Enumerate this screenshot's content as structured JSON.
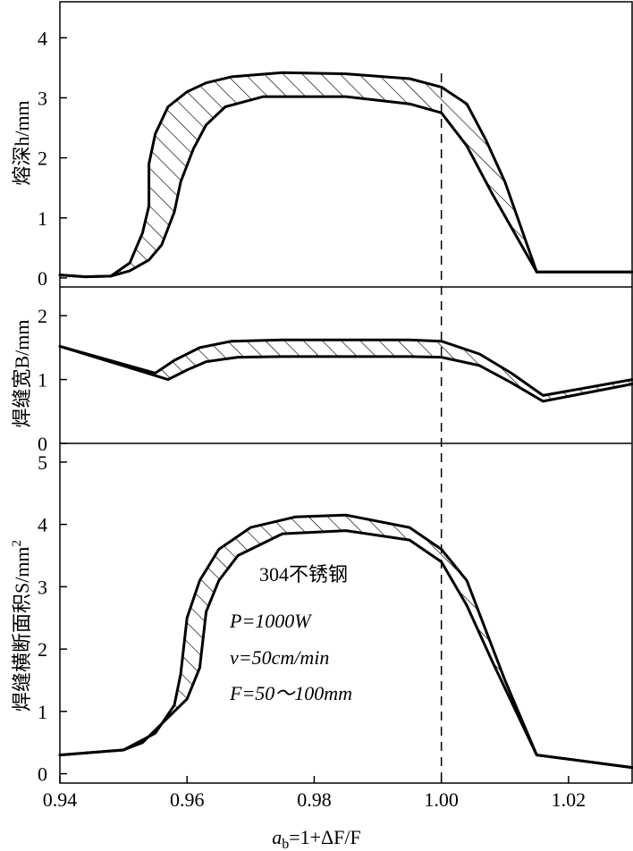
{
  "chart_data": {
    "type": "area",
    "xlabel": "a_b=1+ΔF/F",
    "xlabel_parts": {
      "base": "a",
      "sub": "b",
      "rest": "=1+ΔF/F"
    },
    "xlim": [
      0.94,
      1.03
    ],
    "xticks": [
      0.94,
      0.96,
      0.98,
      1.0,
      1.02
    ],
    "xtick_labels": [
      "0.94",
      "0.96",
      "0.98",
      "1.00",
      "1.02"
    ],
    "reference_line_x": 1.0,
    "annotations": {
      "material": "304不锈钢",
      "power": "P=1000W",
      "speed": "v=50cm/min",
      "focal": "F=50～100mm"
    },
    "panels": [
      {
        "id": "depth",
        "ylabel": "熔深h/mm",
        "ylim": [
          -0.15,
          4.6
        ],
        "yticks": [
          0,
          1,
          2,
          3,
          4
        ],
        "upper": [
          [
            0.94,
            0.05
          ],
          [
            0.944,
            0.02
          ],
          [
            0.948,
            0.03
          ],
          [
            0.951,
            0.25
          ],
          [
            0.953,
            0.75
          ],
          [
            0.954,
            1.2
          ],
          [
            0.954,
            1.9
          ],
          [
            0.955,
            2.4
          ],
          [
            0.957,
            2.85
          ],
          [
            0.96,
            3.1
          ],
          [
            0.963,
            3.25
          ],
          [
            0.967,
            3.35
          ],
          [
            0.975,
            3.42
          ],
          [
            0.985,
            3.4
          ],
          [
            0.995,
            3.32
          ],
          [
            1.0,
            3.18
          ],
          [
            1.004,
            2.9
          ],
          [
            1.007,
            2.3
          ],
          [
            1.01,
            1.6
          ],
          [
            1.015,
            0.1
          ],
          [
            1.03,
            0.1
          ]
        ],
        "lower": [
          [
            0.94,
            0.05
          ],
          [
            0.944,
            0.02
          ],
          [
            0.948,
            0.03
          ],
          [
            0.951,
            0.12
          ],
          [
            0.954,
            0.3
          ],
          [
            0.956,
            0.55
          ],
          [
            0.958,
            1.1
          ],
          [
            0.959,
            1.6
          ],
          [
            0.961,
            2.15
          ],
          [
            0.963,
            2.55
          ],
          [
            0.966,
            2.85
          ],
          [
            0.972,
            3.02
          ],
          [
            0.985,
            3.02
          ],
          [
            0.995,
            2.9
          ],
          [
            1.0,
            2.75
          ],
          [
            1.004,
            2.2
          ],
          [
            1.008,
            1.4
          ],
          [
            1.015,
            0.1
          ],
          [
            1.03,
            0.1
          ]
        ]
      },
      {
        "id": "width",
        "ylabel": "焊缝宽B/mm",
        "ylim": [
          0,
          2.45
        ],
        "yticks": [
          0,
          1,
          2
        ],
        "upper": [
          [
            0.94,
            1.52
          ],
          [
            0.955,
            1.1
          ],
          [
            0.958,
            1.3
          ],
          [
            0.962,
            1.5
          ],
          [
            0.967,
            1.6
          ],
          [
            0.975,
            1.62
          ],
          [
            0.995,
            1.62
          ],
          [
            1.0,
            1.6
          ],
          [
            1.006,
            1.4
          ],
          [
            1.011,
            1.1
          ],
          [
            1.016,
            0.75
          ],
          [
            1.03,
            1.0
          ]
        ],
        "lower": [
          [
            0.94,
            1.52
          ],
          [
            0.957,
            1.0
          ],
          [
            0.96,
            1.15
          ],
          [
            0.963,
            1.28
          ],
          [
            0.968,
            1.35
          ],
          [
            0.975,
            1.36
          ],
          [
            0.995,
            1.36
          ],
          [
            1.0,
            1.35
          ],
          [
            1.006,
            1.22
          ],
          [
            1.011,
            0.95
          ],
          [
            1.016,
            0.66
          ],
          [
            1.03,
            0.93
          ]
        ]
      },
      {
        "id": "area",
        "ylabel": "焊缝横断面积S/mm²",
        "ylabel_parts": {
          "main": "焊缝横断面积S/mm",
          "sup": "2"
        },
        "ylim": [
          -0.15,
          5.3
        ],
        "yticks": [
          0,
          1,
          2,
          3,
          4,
          5
        ],
        "upper": [
          [
            0.94,
            0.3
          ],
          [
            0.95,
            0.38
          ],
          [
            0.955,
            0.65
          ],
          [
            0.958,
            1.1
          ],
          [
            0.959,
            1.6
          ],
          [
            0.96,
            2.5
          ],
          [
            0.962,
            3.1
          ],
          [
            0.965,
            3.6
          ],
          [
            0.97,
            3.95
          ],
          [
            0.977,
            4.12
          ],
          [
            0.985,
            4.15
          ],
          [
            0.995,
            3.95
          ],
          [
            1.0,
            3.6
          ],
          [
            1.004,
            3.1
          ],
          [
            1.007,
            2.3
          ],
          [
            1.01,
            1.5
          ],
          [
            1.015,
            0.3
          ],
          [
            1.03,
            0.1
          ]
        ],
        "lower": [
          [
            0.94,
            0.3
          ],
          [
            0.95,
            0.38
          ],
          [
            0.953,
            0.5
          ],
          [
            0.96,
            1.2
          ],
          [
            0.962,
            1.7
          ],
          [
            0.963,
            2.6
          ],
          [
            0.965,
            3.1
          ],
          [
            0.968,
            3.5
          ],
          [
            0.975,
            3.85
          ],
          [
            0.985,
            3.9
          ],
          [
            0.995,
            3.75
          ],
          [
            1.0,
            3.4
          ],
          [
            1.004,
            2.7
          ],
          [
            1.008,
            1.8
          ],
          [
            1.015,
            0.3
          ],
          [
            1.03,
            0.1
          ]
        ]
      }
    ]
  }
}
